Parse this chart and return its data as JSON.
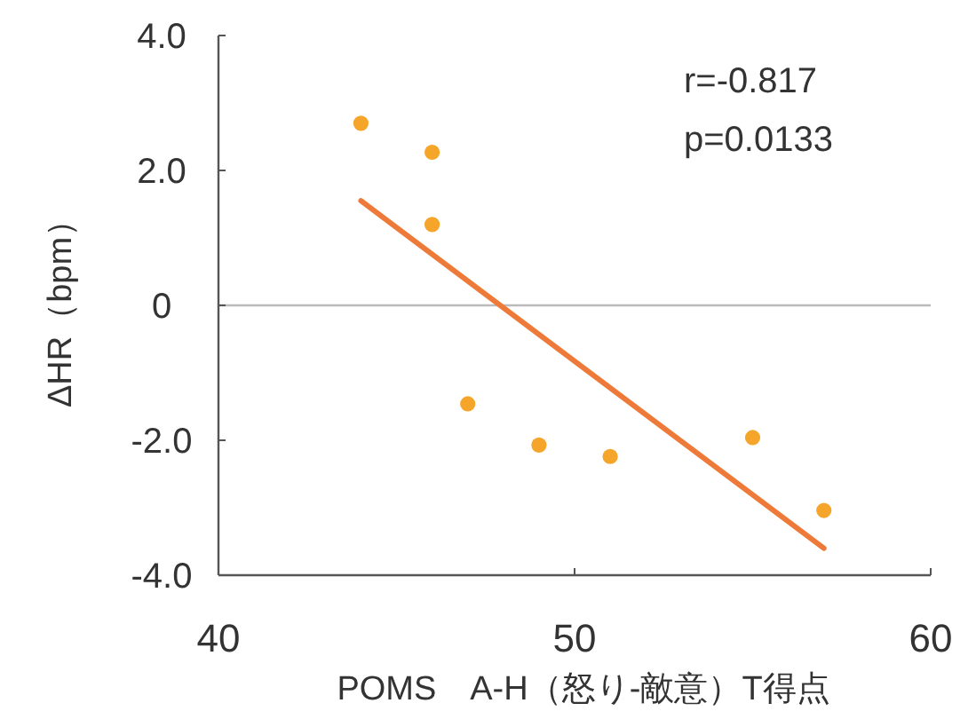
{
  "chart_data": {
    "type": "scatter",
    "xlabel": "POMS　A-H（怒り-敵意）T得点",
    "ylabel": "ΔHR（bpm）",
    "xlim": [
      40,
      60
    ],
    "xticks": [
      40,
      50,
      60
    ],
    "ylim": [
      -4,
      4
    ],
    "yticks": [
      {
        "value": -4,
        "label": "-4.0"
      },
      {
        "value": -2,
        "label": "-2.0"
      },
      0,
      {
        "value": 2,
        "label": "2.0"
      },
      {
        "value": 4,
        "label": "4.0"
      }
    ],
    "series": [
      {
        "marker": "circle",
        "color": "#f5a52a",
        "x": [
          44,
          46,
          46,
          47,
          49,
          51,
          55,
          57
        ],
        "values": [
          2.7,
          2.27,
          1.2,
          -1.46,
          -2.07,
          -2.24,
          -1.96,
          -3.04
        ]
      },
      {
        "type": "line",
        "marker": "none",
        "color": "#ee7a3a",
        "x": [
          44,
          57
        ],
        "values": [
          1.55,
          -3.6
        ]
      }
    ],
    "ref_lines": [
      {
        "axis": "y",
        "value": 0,
        "color": "#bbbbbb"
      }
    ],
    "annotations": [
      "r=-0.817",
      "p=0.0133"
    ]
  }
}
